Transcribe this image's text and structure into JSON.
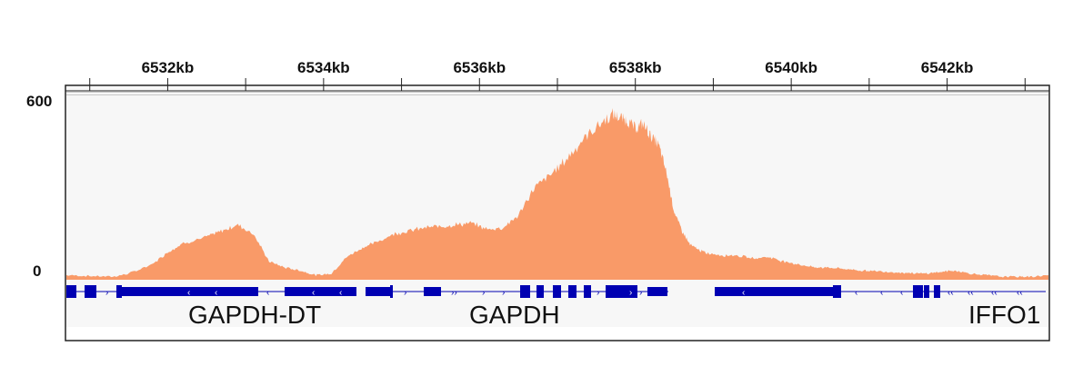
{
  "chart_data": {
    "type": "area",
    "x_unit": "kb",
    "xlim_kb": [
      6530.7,
      6543.3
    ],
    "x_ticks": [
      "6532kb",
      "6534kb",
      "6536kb",
      "6538kb",
      "6540kb",
      "6542kb"
    ],
    "x_tick_values_kb": [
      6532,
      6534,
      6536,
      6538,
      6540,
      6542
    ],
    "ylim": [
      0,
      600
    ],
    "y_axis_labels": {
      "max": "600",
      "min": "0"
    },
    "track_color": "#f99a68",
    "track_background": "#f7f7f7",
    "series": [
      {
        "x_kb": [
          6530.7,
          6531.0,
          6531.3,
          6531.5,
          6531.8,
          6532.0,
          6532.2,
          6532.5,
          6532.7,
          6532.9,
          6533.1,
          6533.3,
          6533.5,
          6533.7,
          6533.9,
          6534.1,
          6534.3,
          6534.5,
          6534.7,
          6534.9,
          6535.1,
          6535.3,
          6535.5,
          6535.7,
          6535.9,
          6536.1,
          6536.3,
          6536.5,
          6536.7,
          6536.9,
          6537.1,
          6537.3,
          6537.5,
          6537.7,
          6537.8,
          6537.9,
          6538.0,
          6538.1,
          6538.2,
          6538.3,
          6538.4,
          6538.5,
          6538.6,
          6538.7,
          6538.8,
          6538.9,
          6539.1,
          6539.3,
          6539.5,
          6539.7,
          6539.9,
          6540.1,
          6540.3,
          6540.5,
          6540.7,
          6540.9,
          6541.1,
          6541.3,
          6541.5,
          6541.7,
          6541.9,
          6542.1,
          6542.3,
          6542.5,
          6542.7,
          6542.9,
          6543.1,
          6543.3
        ],
        "y": [
          15,
          12,
          10,
          20,
          50,
          90,
          120,
          140,
          160,
          180,
          150,
          60,
          40,
          30,
          15,
          20,
          75,
          105,
          125,
          150,
          160,
          170,
          175,
          180,
          185,
          165,
          170,
          210,
          300,
          340,
          390,
          450,
          500,
          540,
          530,
          520,
          495,
          510,
          470,
          440,
          350,
          220,
          160,
          115,
          100,
          88,
          80,
          80,
          70,
          75,
          60,
          50,
          40,
          40,
          35,
          30,
          28,
          25,
          22,
          20,
          25,
          30,
          20,
          15,
          10,
          10,
          10,
          15
        ]
      }
    ],
    "genes": [
      {
        "name": "GAPDH-DT",
        "label": "GAPDH-DT"
      },
      {
        "name": "GAPDH",
        "label": "GAPDH"
      },
      {
        "name": "IFFO1",
        "label": "IFFO1"
      }
    ],
    "gene_color": "#0000b2"
  }
}
